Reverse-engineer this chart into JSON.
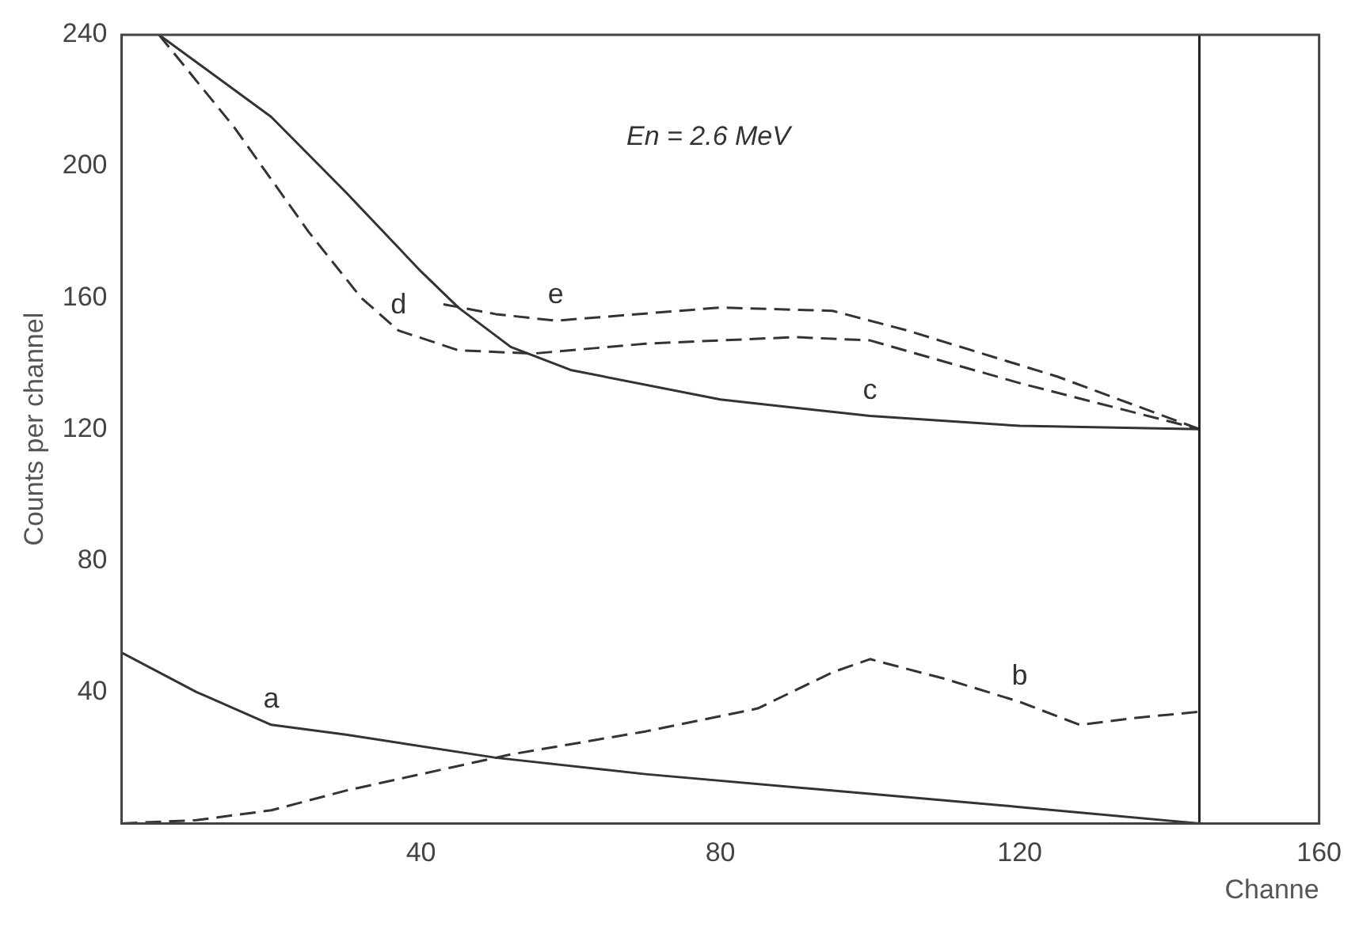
{
  "chart_data": {
    "type": "line",
    "xlabel": "Channe",
    "ylabel": "Counts per channel",
    "xlim": [
      0,
      160
    ],
    "xticks": [
      40,
      80,
      120,
      160
    ],
    "ylim": [
      0,
      240
    ],
    "yticks": [
      40,
      80,
      120,
      160,
      200,
      240
    ],
    "grid": false,
    "legend": false,
    "marker": "none",
    "series": [
      {
        "color": "#333333",
        "line_style": "solid",
        "x": [
          0,
          10,
          20,
          30,
          50,
          70,
          100,
          120,
          144
        ],
        "values": [
          52,
          40,
          30,
          27,
          20,
          15,
          9,
          5,
          0
        ]
      },
      {
        "color": "#333333",
        "line_style": "dashed",
        "x": [
          0,
          10,
          20,
          30,
          40,
          52,
          70,
          85,
          95,
          100,
          110,
          120,
          128,
          135,
          144
        ],
        "values": [
          0,
          1,
          4,
          10,
          15,
          21,
          28,
          35,
          46,
          50,
          44,
          37,
          30,
          32,
          34
        ]
      },
      {
        "color": "#333333",
        "line_style": "solid",
        "x": [
          5,
          20,
          30,
          40,
          45,
          52,
          60,
          80,
          100,
          120,
          144
        ],
        "values": [
          240,
          215,
          192,
          168,
          157,
          145,
          138,
          129,
          124,
          121,
          120
        ]
      },
      {
        "color": "#333333",
        "line_style": "dashed",
        "x": [
          5,
          15,
          25,
          32,
          37,
          45,
          55,
          70,
          90,
          100,
          120,
          144
        ],
        "values": [
          240,
          212,
          180,
          160,
          150,
          144,
          143,
          146,
          148,
          147,
          134,
          120
        ]
      },
      {
        "color": "#333333",
        "line_style": "dashed",
        "x": [
          43,
          50,
          58,
          80,
          95,
          105,
          125,
          144
        ],
        "values": [
          158,
          155,
          153,
          157,
          156,
          150,
          136,
          120
        ]
      }
    ],
    "ref_lines": [
      {
        "axis": "x",
        "value": 144,
        "color": "#222222",
        "line_style": "solid"
      }
    ],
    "annotations": [
      {
        "text": "a",
        "x": 20,
        "y": 30
      },
      {
        "text": "b",
        "x": 120,
        "y": 37
      },
      {
        "text": "c",
        "x": 100,
        "y": 124
      },
      {
        "text": "d",
        "x": 37,
        "y": 150
      },
      {
        "text": "e",
        "x": 58,
        "y": 153
      },
      "En = 2.6 MeV"
    ]
  }
}
